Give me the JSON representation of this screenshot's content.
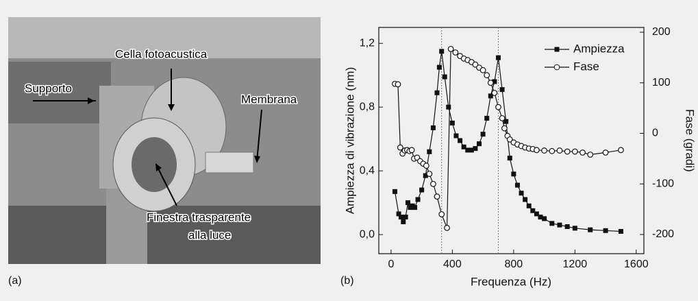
{
  "photo": {
    "panel_label": "(a)",
    "labels": [
      "Supporto",
      "Cella fotoacustica",
      "Membrana",
      "Finestra trasparente",
      "alla luce"
    ]
  },
  "chart_data": {
    "type": "line",
    "panel_label": "(b)",
    "x_label": "Frequenza (Hz)",
    "y_label": "Ampiezza di vibrazione (nm)",
    "y2_label": "Fase (gradi)",
    "xlim": [
      -80,
      1650
    ],
    "xticks": [
      0,
      400,
      800,
      1200,
      1600
    ],
    "ylim": [
      -0.12,
      1.3
    ],
    "yticks": [
      {
        "value": 0,
        "label": "0,0"
      },
      {
        "value": 0.4,
        "label": "0,4"
      },
      {
        "value": 0.8,
        "label": "0,8"
      },
      {
        "value": 1.2,
        "label": "1,2"
      }
    ],
    "y2lim": [
      -238,
      209.5
    ],
    "y2ticks": [
      -200,
      -100,
      0,
      100,
      200
    ],
    "reference_lines": [
      330,
      700
    ],
    "legend": "upper right",
    "series": [
      {
        "name": "Ampiezza",
        "color": "#111111",
        "marker": "square",
        "x": [
          25,
          50,
          65,
          80,
          95,
          110,
          125,
          140,
          155,
          175,
          200,
          225,
          250,
          275,
          300,
          315,
          330,
          350,
          375,
          400,
          425,
          450,
          475,
          500,
          525,
          550,
          575,
          600,
          625,
          650,
          675,
          700,
          725,
          750,
          775,
          800,
          825,
          850,
          875,
          900,
          925,
          950,
          975,
          1000,
          1050,
          1100,
          1150,
          1200,
          1300,
          1400,
          1500
        ],
        "values": [
          0.27,
          0.13,
          0.11,
          0.08,
          0.11,
          0.2,
          0.17,
          0.18,
          0.17,
          0.22,
          0.28,
          0.37,
          0.52,
          0.67,
          0.89,
          1.05,
          1.15,
          0.99,
          0.8,
          0.7,
          0.62,
          0.59,
          0.55,
          0.53,
          0.53,
          0.54,
          0.57,
          0.63,
          0.73,
          0.87,
          0.96,
          1.11,
          0.91,
          0.71,
          0.48,
          0.38,
          0.31,
          0.26,
          0.22,
          0.18,
          0.15,
          0.13,
          0.11,
          0.1,
          0.07,
          0.06,
          0.05,
          0.04,
          0.03,
          0.025,
          0.02
        ]
      },
      {
        "name": "Fase",
        "color": "#111111",
        "marker": "circle",
        "axis": "y2",
        "x": [
          25,
          45,
          60,
          75,
          90,
          105,
          120,
          135,
          150,
          170,
          190,
          210,
          230,
          250,
          275,
          300,
          330,
          365,
          390,
          420,
          450,
          475,
          500,
          525,
          550,
          575,
          600,
          625,
          650,
          675,
          700,
          725,
          740,
          760,
          775,
          800,
          825,
          850,
          875,
          900,
          925,
          950,
          1000,
          1050,
          1100,
          1150,
          1200,
          1250,
          1300,
          1400,
          1500
        ],
        "values": [
          98,
          97,
          -28,
          -40,
          -34,
          -33,
          -35,
          -33,
          -50,
          -48,
          -55,
          -60,
          -64,
          -80,
          -100,
          -125,
          -160,
          -187,
          167,
          160,
          153,
          148,
          145,
          141,
          136,
          130,
          125,
          115,
          100,
          80,
          52,
          30,
          10,
          -5,
          -12,
          -18,
          -22,
          -25,
          -28,
          -30,
          -31,
          -33,
          -34,
          -35,
          -34,
          -36,
          -36,
          -38,
          -42,
          -38,
          -33
        ]
      }
    ]
  }
}
